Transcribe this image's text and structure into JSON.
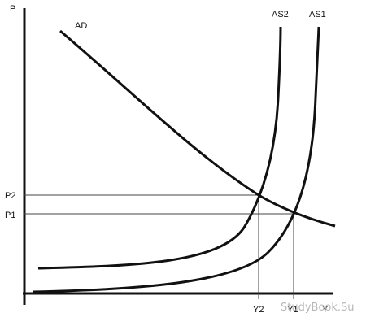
{
  "axes": {
    "y_label": "P",
    "x_label": "Y"
  },
  "curves": {
    "ad": "AD",
    "as2": "AS2",
    "as1": "AS1"
  },
  "levels": {
    "p2": "P2",
    "p1": "P1",
    "y2": "Y2",
    "y1": "Y1"
  },
  "watermark": "StudyBook.Su",
  "colors": {
    "line": "#111111",
    "guide": "#444444",
    "watermark": "#b8b8b8"
  }
}
